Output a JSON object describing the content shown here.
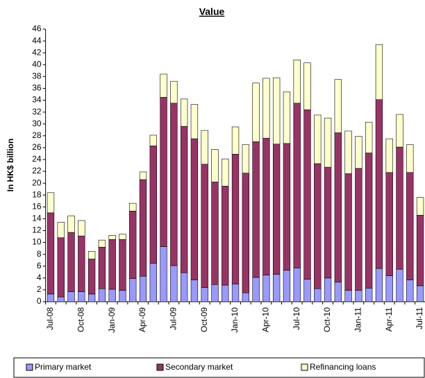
{
  "chart_data": {
    "type": "stacked_bar",
    "title": "Value",
    "y_label": "In HK$ billion",
    "categories": [
      "Jul-08",
      null,
      null,
      "Oct-08",
      null,
      null,
      "Jan-09",
      null,
      null,
      "Apr-09",
      null,
      null,
      "Jul-09",
      null,
      null,
      "Oct-09",
      null,
      null,
      "Jan-10",
      null,
      null,
      "Apr-10",
      null,
      null,
      "Jul-10",
      null,
      null,
      "Oct-10",
      null,
      null,
      "Jan-11",
      null,
      null,
      "Apr-11",
      null,
      null,
      "Jul-11"
    ],
    "series": [
      {
        "name": "Primary market",
        "color": "#9999ff",
        "values": [
          1.3,
          0.8,
          1.7,
          1.7,
          1.3,
          2.2,
          2.1,
          1.9,
          3.9,
          4.3,
          6.5,
          9.3,
          6.1,
          4.9,
          3.7,
          2.4,
          2.9,
          2.8,
          3.0,
          1.5,
          4.1,
          4.5,
          4.6,
          5.3,
          5.7,
          3.8,
          2.2,
          4.0,
          3.3,
          1.9,
          1.9,
          2.3,
          5.6,
          4.4,
          5.5,
          3.7,
          2.7
        ]
      },
      {
        "name": "Secondary market",
        "color": "#993366",
        "values": [
          13.7,
          10.0,
          10.0,
          9.4,
          5.9,
          7.0,
          8.4,
          8.6,
          11.4,
          16.3,
          19.8,
          25.2,
          27.4,
          24.7,
          23.8,
          20.8,
          17.3,
          16.7,
          21.9,
          20.2,
          22.9,
          23.1,
          22.0,
          21.4,
          27.8,
          28.6,
          21.1,
          18.7,
          25.2,
          19.7,
          20.6,
          22.8,
          28.5,
          17.4,
          20.6,
          18.1,
          11.9
        ]
      },
      {
        "name": "Refinancing loans",
        "color": "#ffffcc",
        "values": [
          3.4,
          2.6,
          2.8,
          2.6,
          1.3,
          1.2,
          0.7,
          0.9,
          1.3,
          1.3,
          1.8,
          3.9,
          3.7,
          4.6,
          5.8,
          5.7,
          5.5,
          4.6,
          4.6,
          4.8,
          9.9,
          10.1,
          11.2,
          8.7,
          7.3,
          7.9,
          8.2,
          8.3,
          9.0,
          7.2,
          5.4,
          5.2,
          9.3,
          5.7,
          5.5,
          4.7,
          3.0
        ]
      }
    ],
    "ylim": [
      0,
      46
    ],
    "yticks": [
      0,
      2,
      4,
      6,
      8,
      10,
      12,
      14,
      16,
      18,
      20,
      22,
      24,
      26,
      28,
      30,
      32,
      34,
      36,
      38,
      40,
      42,
      44,
      46
    ],
    "legend": "bottom"
  }
}
